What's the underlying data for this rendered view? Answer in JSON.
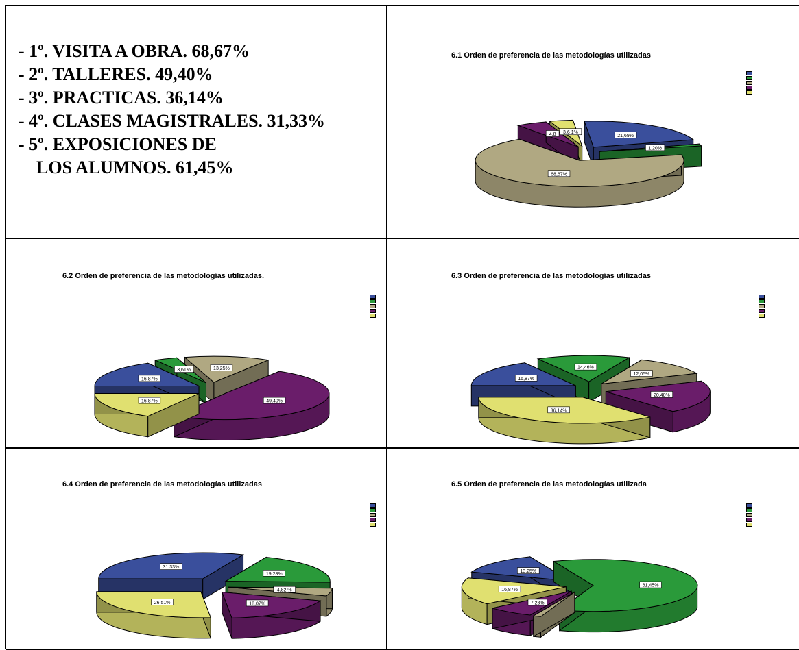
{
  "summary": {
    "lines": [
      "- 1º. VISITA A OBRA. 68,67%",
      "- 2º. TALLERES. 49,40%",
      "- 3º. PRACTICAS. 36,14%",
      "- 4º. CLASES MAGISTRALES. 31,33%",
      "- 5º. EXPOSICIONES DE",
      "    LOS ALUMNOS. 61,45%"
    ]
  },
  "colors": {
    "blue": "#3a4f9c",
    "green": "#2a9a3a",
    "tan": "#b0a882",
    "purple": "#6a1d6a",
    "yellow": "#e0e070"
  },
  "chart_data": [
    {
      "type": "pie",
      "title": "6.1 Orden de preferencia de las metodologías utilizadas",
      "slices": [
        {
          "color": "blue",
          "value": 21.69,
          "label": "21,69%"
        },
        {
          "color": "green",
          "value": 1.2,
          "label": "1,20%"
        },
        {
          "color": "tan",
          "value": 68.67,
          "label": "68,67%"
        },
        {
          "color": "purple",
          "value": 4.8,
          "label": "4,8"
        },
        {
          "color": "yellow",
          "value": 3.61,
          "label": "3,6 1%"
        }
      ]
    },
    {
      "type": "pie",
      "title": "6.2 Orden de preferencia de las metodologías utilizadas.",
      "slices": [
        {
          "color": "blue",
          "value": 16.87,
          "label": "16,87%"
        },
        {
          "color": "green",
          "value": 3.61,
          "label": "3,61%"
        },
        {
          "color": "tan",
          "value": 13.25,
          "label": "13,25%"
        },
        {
          "color": "purple",
          "value": 49.4,
          "label": "49,40%"
        },
        {
          "color": "yellow",
          "value": 16.87,
          "label": "16,87%"
        }
      ]
    },
    {
      "type": "pie",
      "title": "6.3 Orden de preferencia de las metodologías utilizadas",
      "slices": [
        {
          "color": "blue",
          "value": 16.87,
          "label": "16,87%"
        },
        {
          "color": "green",
          "value": 14.46,
          "label": "14,46%"
        },
        {
          "color": "tan",
          "value": 12.05,
          "label": "12,05%"
        },
        {
          "color": "purple",
          "value": 20.48,
          "label": "20,48%"
        },
        {
          "color": "yellow",
          "value": 36.14,
          "label": "36,14%"
        }
      ]
    },
    {
      "type": "pie",
      "title": "6.4 Orden de preferencia de las metodologías utilizadas",
      "slices": [
        {
          "color": "blue",
          "value": 31.33,
          "label": "31,33%"
        },
        {
          "color": "green",
          "value": 19.28,
          "label": "19,28%"
        },
        {
          "color": "tan",
          "value": 4.82,
          "label": "4,82 %"
        },
        {
          "color": "purple",
          "value": 18.07,
          "label": "18,07%"
        },
        {
          "color": "yellow",
          "value": 26.51,
          "label": "26,51%"
        }
      ]
    },
    {
      "type": "pie",
      "title": "6.5 Orden de preferencia de las metodologías utilizada",
      "slices": [
        {
          "color": "blue",
          "value": 13.25,
          "label": "13,25%"
        },
        {
          "color": "green",
          "value": 61.45,
          "label": "61,45%"
        },
        {
          "color": "tan",
          "value": 1.2,
          "label": ""
        },
        {
          "color": "purple",
          "value": 7.23,
          "label": "7,23%"
        },
        {
          "color": "yellow",
          "value": 16.87,
          "label": "16,87%"
        }
      ]
    }
  ]
}
